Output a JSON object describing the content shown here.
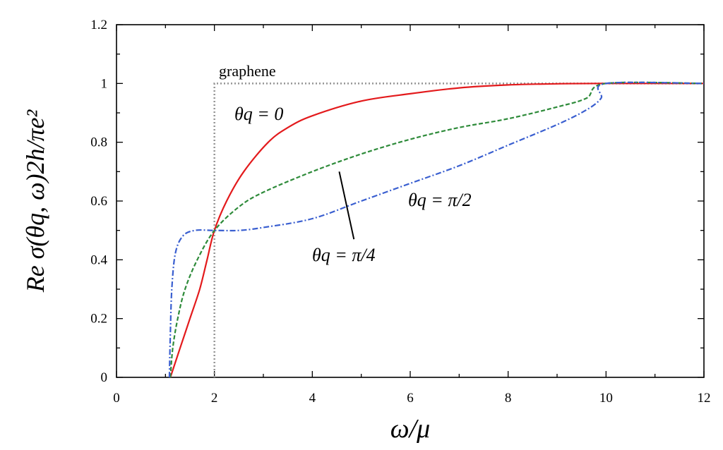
{
  "chart_data": {
    "type": "line",
    "xlabel": "ω/μ",
    "ylabel": "Re σ(θq, ω)2h/πe²",
    "xlim": [
      0,
      12
    ],
    "ylim": [
      0,
      1.2
    ],
    "xticks": [
      "0",
      "2",
      "4",
      "6",
      "8",
      "10",
      "12"
    ],
    "yticks": [
      "0",
      "0.2",
      "0.4",
      "0.6",
      "0.8",
      "1",
      "1.2"
    ],
    "grid": false,
    "legend": "none",
    "annotations": {
      "graphene": "graphene",
      "theta0": "θq = 0",
      "theta_pi2": "θq = π/2",
      "theta_pi4": "θq = π/4"
    },
    "series": [
      {
        "name": "graphene",
        "color": "#999999",
        "style": "dotted",
        "points": [
          [
            2,
            0
          ],
          [
            2,
            1
          ],
          [
            12,
            1
          ]
        ]
      },
      {
        "name": "θq = 0",
        "color": "#e31a1c",
        "style": "solid",
        "points": [
          [
            1.1,
            0
          ],
          [
            1.3,
            0.1
          ],
          [
            1.5,
            0.2
          ],
          [
            1.7,
            0.3
          ],
          [
            1.85,
            0.4
          ],
          [
            2,
            0.5
          ],
          [
            2.25,
            0.6
          ],
          [
            2.6,
            0.7
          ],
          [
            3.1,
            0.8
          ],
          [
            3.5,
            0.85
          ],
          [
            4,
            0.89
          ],
          [
            5,
            0.94
          ],
          [
            6,
            0.965
          ],
          [
            7,
            0.985
          ],
          [
            8,
            0.995
          ],
          [
            9,
            0.999
          ],
          [
            10,
            1
          ],
          [
            12,
            1
          ]
        ]
      },
      {
        "name": "θq = π/4",
        "color": "#2e8b3a",
        "style": "dashed",
        "points": [
          [
            1.1,
            0
          ],
          [
            1.15,
            0.1
          ],
          [
            1.25,
            0.2
          ],
          [
            1.4,
            0.3
          ],
          [
            1.65,
            0.4
          ],
          [
            2,
            0.5
          ],
          [
            2.5,
            0.58
          ],
          [
            3,
            0.63
          ],
          [
            4,
            0.7
          ],
          [
            5,
            0.76
          ],
          [
            6,
            0.81
          ],
          [
            7,
            0.85
          ],
          [
            8,
            0.88
          ],
          [
            9,
            0.92
          ],
          [
            9.6,
            0.95
          ],
          [
            10,
            1
          ],
          [
            12,
            1
          ]
        ]
      },
      {
        "name": "θq = π/2",
        "color": "#3a5fd0",
        "style": "dashdot",
        "points": [
          [
            1.08,
            0
          ],
          [
            1.1,
            0.15
          ],
          [
            1.13,
            0.3
          ],
          [
            1.2,
            0.42
          ],
          [
            1.35,
            0.48
          ],
          [
            1.6,
            0.5
          ],
          [
            2,
            0.5
          ],
          [
            2.5,
            0.5
          ],
          [
            3,
            0.51
          ],
          [
            4,
            0.54
          ],
          [
            5,
            0.6
          ],
          [
            6,
            0.66
          ],
          [
            7,
            0.72
          ],
          [
            8,
            0.79
          ],
          [
            9,
            0.86
          ],
          [
            9.6,
            0.91
          ],
          [
            9.9,
            0.95
          ],
          [
            10,
            1
          ],
          [
            12,
            1
          ]
        ]
      }
    ]
  }
}
